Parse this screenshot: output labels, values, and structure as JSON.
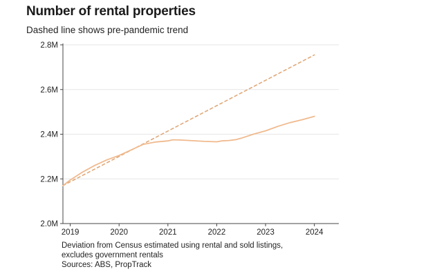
{
  "chart_data": {
    "type": "line",
    "title": "Number of rental properties",
    "subtitle": "Dashed line shows pre-pandemic trend",
    "xlabel": "",
    "ylabel": "",
    "xlim": [
      2018.85,
      2024.5
    ],
    "ylim": [
      2.0,
      2.8
    ],
    "x_ticks": [
      {
        "value": 2019,
        "label": "2019"
      },
      {
        "value": 2020,
        "label": "2020"
      },
      {
        "value": 2021,
        "label": "2021"
      },
      {
        "value": 2022,
        "label": "2022"
      },
      {
        "value": 2023,
        "label": "2023"
      },
      {
        "value": 2024,
        "label": "2024"
      }
    ],
    "y_ticks": [
      {
        "value": 2.0,
        "label": "2.0M"
      },
      {
        "value": 2.2,
        "label": "2.2M"
      },
      {
        "value": 2.4,
        "label": "2.4M"
      },
      {
        "value": 2.6,
        "label": "2.6M"
      },
      {
        "value": 2.8,
        "label": "2.8M"
      }
    ],
    "grid": true,
    "series": [
      {
        "role": "actual",
        "color": "#f0b98d",
        "dashed": false,
        "x": [
          2018.85,
          2019.0,
          2019.25,
          2019.5,
          2019.75,
          2020.0,
          2020.25,
          2020.5,
          2020.75,
          2021.0,
          2021.1,
          2021.25,
          2021.5,
          2021.75,
          2022.0,
          2022.1,
          2022.25,
          2022.4,
          2022.5,
          2022.75,
          2023.0,
          2023.25,
          2023.5,
          2023.75,
          2024.0
        ],
        "y": [
          2.17,
          2.195,
          2.23,
          2.26,
          2.285,
          2.305,
          2.33,
          2.355,
          2.365,
          2.37,
          2.375,
          2.374,
          2.371,
          2.368,
          2.366,
          2.37,
          2.372,
          2.376,
          2.382,
          2.4,
          2.415,
          2.435,
          2.452,
          2.465,
          2.48
        ]
      },
      {
        "role": "pre-pandemic trend",
        "color": "#e0a878",
        "dashed": true,
        "x": [
          2018.85,
          2024.0
        ],
        "y": [
          2.17,
          2.755
        ]
      }
    ]
  },
  "footnote": {
    "line1": "Deviation from Census estimated using rental and sold listings,",
    "line2": "excludes government rentals",
    "line3": "Sources: ABS, PropTrack"
  }
}
